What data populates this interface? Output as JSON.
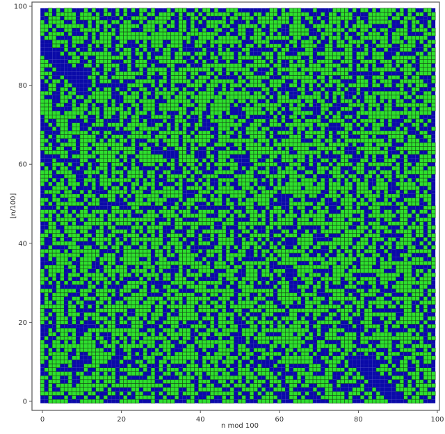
{
  "chart_data": {
    "type": "heatmap",
    "title": "",
    "xlabel": "n mod 100",
    "ylabel": "⌊n/100⌋",
    "xlim": [
      0,
      100
    ],
    "ylim": [
      0,
      100
    ],
    "xticks": [
      "0",
      "20",
      "40",
      "60",
      "80",
      "100"
    ],
    "yticks": [
      "0",
      "20",
      "40",
      "60",
      "80",
      "100"
    ],
    "grid_size": [
      100,
      100
    ],
    "grid": true,
    "legend": "none",
    "colors": {
      "on": "#0a0aa8",
      "off": "#2ee02e",
      "cell_border": "#1a4a1a"
    },
    "note_values": "binary cell states, 100×100, roughly symmetric about the main diagonal; solid blue diagonal bands at top-left and bottom-right corners"
  }
}
